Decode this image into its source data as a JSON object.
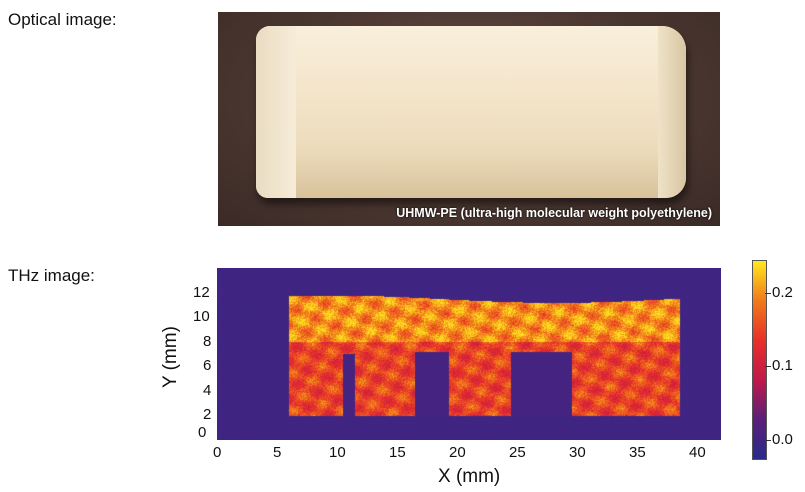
{
  "optical_label": "Optical image:",
  "thz_label": "THz image:",
  "photo_caption": "UHMW-PE (ultra-high molecular weight polyethylene)",
  "chart_data": {
    "type": "heatmap",
    "xlabel": "X (mm)",
    "ylabel": "Y (mm)",
    "xlim": [
      0,
      42
    ],
    "ylim": [
      0,
      14
    ],
    "xticks": [
      "0",
      "5",
      "10",
      "15",
      "20",
      "25",
      "30",
      "35",
      "40"
    ],
    "yticks": [
      "0",
      "2",
      "4",
      "6",
      "8",
      "10",
      "12"
    ],
    "colorbar": {
      "ticks": [
        "0.0",
        "0.1",
        "0.2"
      ],
      "range": [
        -0.025,
        0.245
      ],
      "colormap": [
        "#2a2a8a",
        "#5a1f7a",
        "#c0184a",
        "#e8302a",
        "#f07a1a",
        "#ffe820"
      ]
    },
    "background_value": 0.0,
    "sample_region": {
      "x": [
        6,
        38.5
      ],
      "y": [
        2,
        11.5
      ],
      "value_range": [
        0.1,
        0.24
      ]
    },
    "slots": [
      {
        "x": [
          10.5,
          11.5
        ],
        "y": [
          2,
          7
        ]
      },
      {
        "x": [
          16.5,
          19.3
        ],
        "y": [
          2,
          7.2
        ]
      },
      {
        "x": [
          24.5,
          29.5
        ],
        "y": [
          2,
          7.2
        ]
      }
    ]
  }
}
